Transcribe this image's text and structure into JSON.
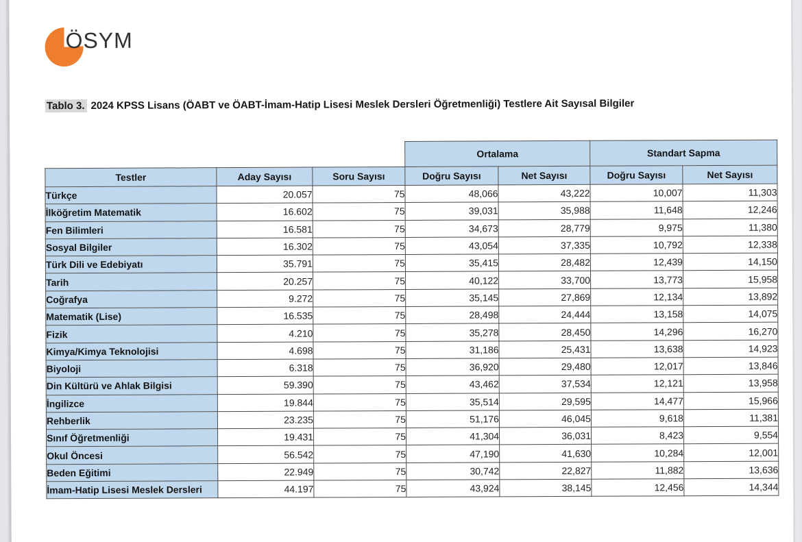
{
  "page": {
    "logo": {
      "text": "ÖSYM",
      "orange": "#ee7e2e"
    },
    "title": {
      "label": "Tablo 3.",
      "text": "2024 KPSS Lisans (ÖABT ve ÖABT-İmam-Hatip Lisesi Meslek Dersleri Öğretmenliği) Testlere Ait Sayısal Bilgiler"
    }
  },
  "colors": {
    "header_blue": "#bfd8ee",
    "border_gray": "#4a4a4a",
    "title_highlight": "#d8d8d8",
    "page_background": "#ededf0"
  },
  "table": {
    "group_headers": [
      "Ortalama",
      "Standart Sapma"
    ],
    "columns": [
      "Testler",
      "Aday Sayısı",
      "Soru Sayısı",
      "Doğru Sayısı",
      "Net Sayısı",
      "Doğru Sayısı",
      "Net Sayısı"
    ],
    "rows": [
      [
        "Türkçe",
        "20.057",
        "75",
        "48,066",
        "43,222",
        "10,007",
        "11,303"
      ],
      [
        "İlköğretim Matematik",
        "16.602",
        "75",
        "39,031",
        "35,988",
        "11,648",
        "12,246"
      ],
      [
        "Fen Bilimleri",
        "16.581",
        "75",
        "34,673",
        "28,779",
        "9,975",
        "11,380"
      ],
      [
        "Sosyal Bilgiler",
        "16.302",
        "75",
        "43,054",
        "37,335",
        "10,792",
        "12,338"
      ],
      [
        "Türk Dili ve Edebiyatı",
        "35.791",
        "75",
        "35,415",
        "28,482",
        "12,439",
        "14,150"
      ],
      [
        "Tarih",
        "20.257",
        "75",
        "40,122",
        "33,700",
        "13,773",
        "15,958"
      ],
      [
        "Coğrafya",
        "9.272",
        "75",
        "35,145",
        "27,869",
        "12,134",
        "13,892"
      ],
      [
        "Matematik (Lise)",
        "16.535",
        "75",
        "28,498",
        "24,444",
        "13,158",
        "14,075"
      ],
      [
        "Fizik",
        "4.210",
        "75",
        "35,278",
        "28,450",
        "14,296",
        "16,270"
      ],
      [
        "Kimya/Kimya Teknolojisi",
        "4.698",
        "75",
        "31,186",
        "25,431",
        "13,638",
        "14,923"
      ],
      [
        "Biyoloji",
        "6.318",
        "75",
        "36,920",
        "29,480",
        "12,017",
        "13,846"
      ],
      [
        "Din Kültürü ve Ahlak Bilgisi",
        "59.390",
        "75",
        "43,462",
        "37,534",
        "12,121",
        "13,958"
      ],
      [
        "İngilizce",
        "19.844",
        "75",
        "35,514",
        "29,595",
        "14,477",
        "15,966"
      ],
      [
        "Rehberlik",
        "23.235",
        "75",
        "51,176",
        "46,045",
        "9,618",
        "11,381"
      ],
      [
        "Sınıf Öğretmenliği",
        "19.431",
        "75",
        "41,304",
        "36,031",
        "8,423",
        "9,554"
      ],
      [
        "Okul Öncesi",
        "56.542",
        "75",
        "47,190",
        "41,630",
        "10,284",
        "12,001"
      ],
      [
        "Beden Eğitimi",
        "22.949",
        "75",
        "30,742",
        "22,827",
        "11,882",
        "13,636"
      ],
      [
        "İmam-Hatip Lisesi Meslek Dersleri",
        "44.197",
        "75",
        "43,924",
        "38,145",
        "12,456",
        "14,344"
      ]
    ]
  }
}
